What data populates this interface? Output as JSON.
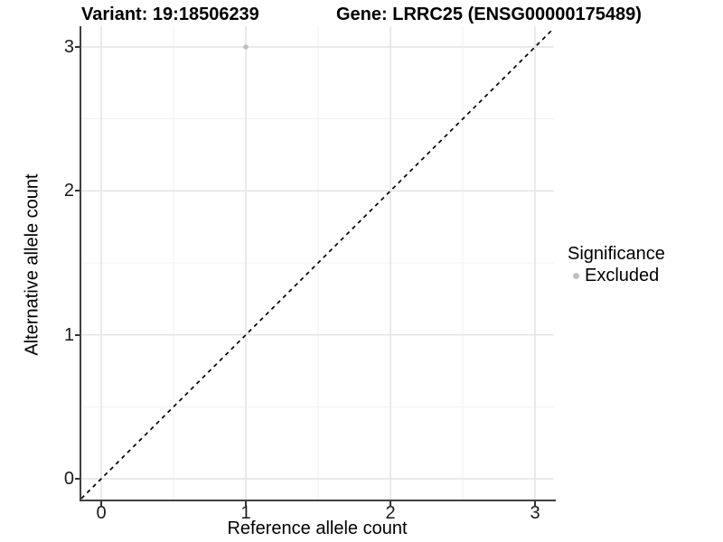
{
  "chart_data": {
    "type": "scatter",
    "title_left": "Variant: 19:18506239",
    "title_right": "Gene: LRRC25 (ENSG00000175489)",
    "xlabel": "Reference allele count",
    "ylabel": "Alternative allele count",
    "xlim": [
      -0.15,
      3.15
    ],
    "ylim": [
      -0.15,
      3.15
    ],
    "xticks": [
      0,
      1,
      2,
      3
    ],
    "yticks": [
      0,
      1,
      2,
      3
    ],
    "minor_xticks": [
      0.5,
      1.5,
      2.5
    ],
    "minor_yticks": [
      0.5,
      1.5,
      2.5
    ],
    "grid": true,
    "aspect": "equal",
    "points": [
      {
        "x": 1,
        "y": 3,
        "series": "Excluded"
      }
    ],
    "abline": {
      "intercept": 0,
      "slope": 1,
      "linetype": "dashed"
    },
    "legend": {
      "title": "Significance",
      "position": "right",
      "entries": [
        {
          "label": "Excluded",
          "color": "#bfbfbf"
        }
      ]
    },
    "colors": {
      "point": "#bfbfbf",
      "grid_major": "#e3e3e3",
      "grid_minor": "#f1f1f1",
      "axis_line": "#404040",
      "tick_mark": "#333333",
      "abline": "#000000",
      "background": "#ffffff"
    }
  }
}
